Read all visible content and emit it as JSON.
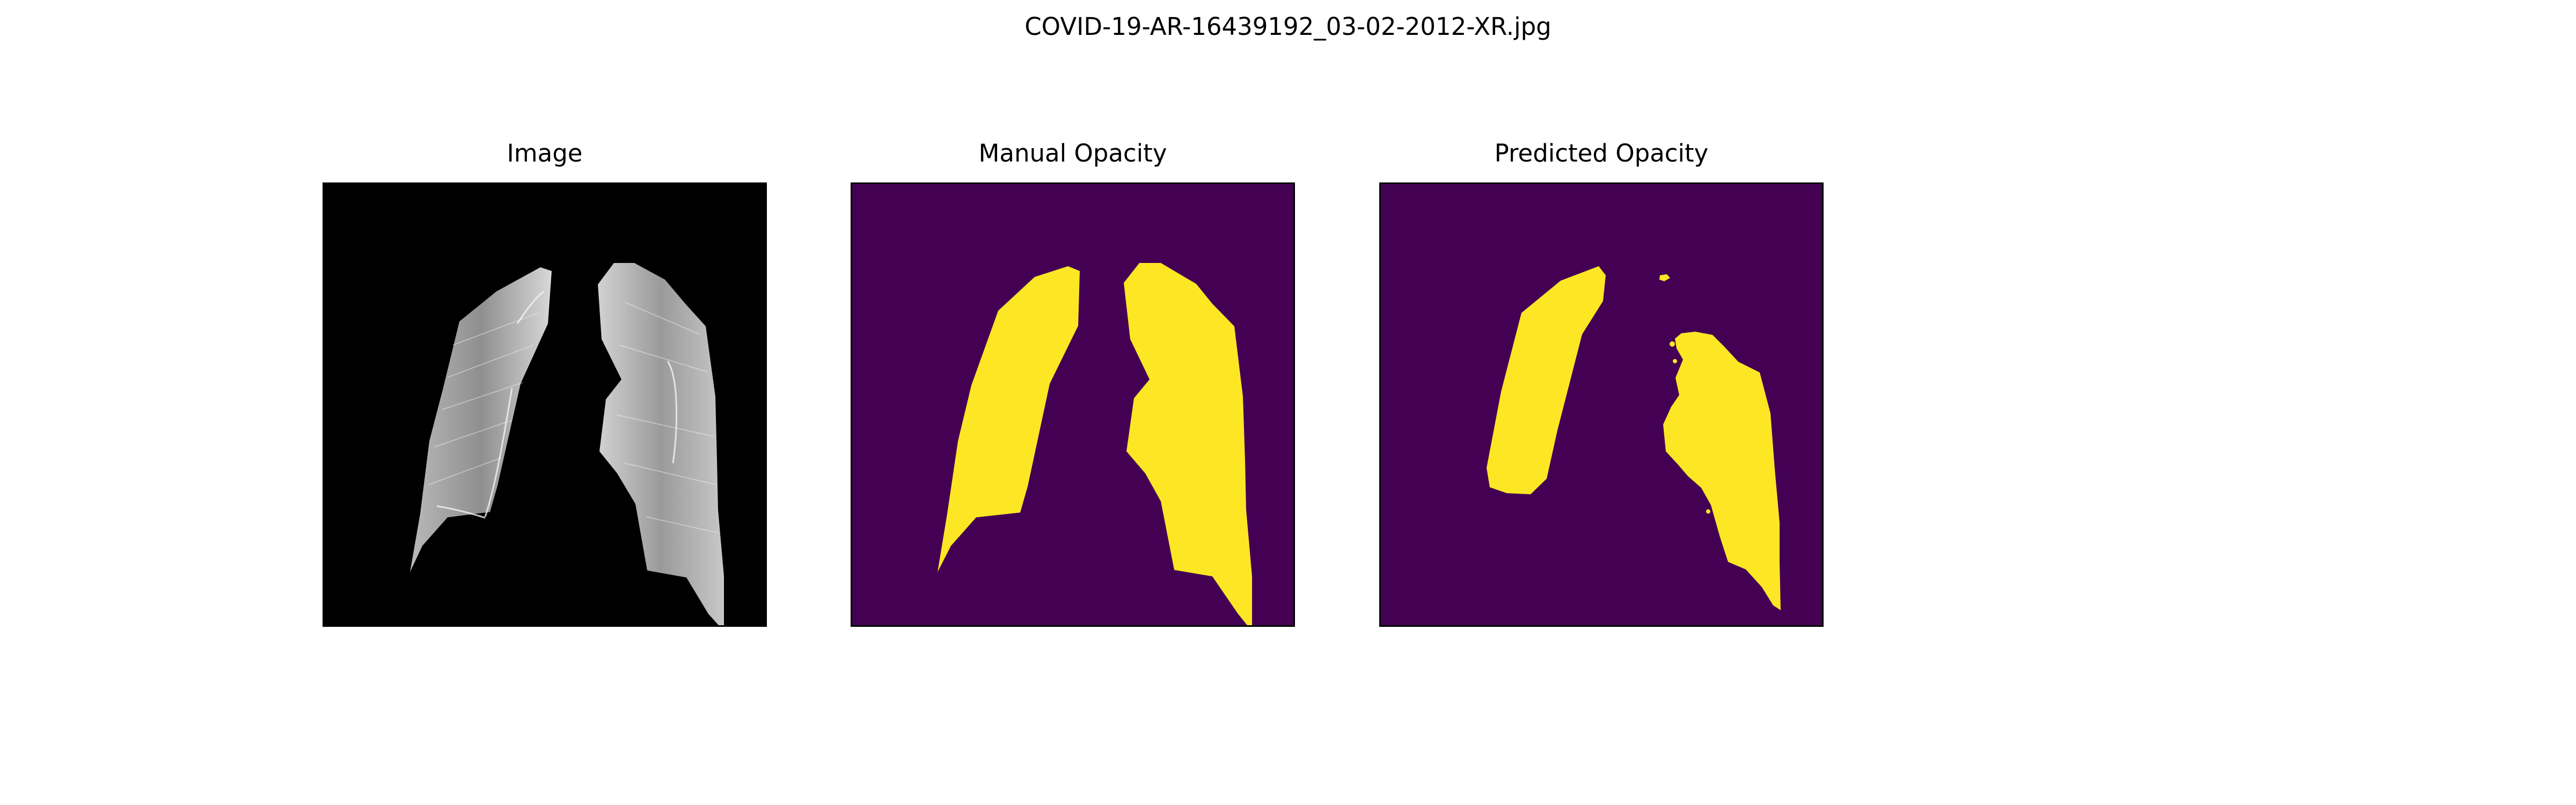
{
  "figure": {
    "suptitle": "COVID-19-AR-16439192_03-02-2012-XR.jpg"
  },
  "panels": [
    {
      "title": "Image"
    },
    {
      "title": "Manual Opacity"
    },
    {
      "title": "Predicted Opacity"
    }
  ],
  "colors": {
    "figure_background": "#ffffff",
    "image_background": "#000000",
    "mask_background": "#440154",
    "mask_foreground": "#fde725"
  }
}
